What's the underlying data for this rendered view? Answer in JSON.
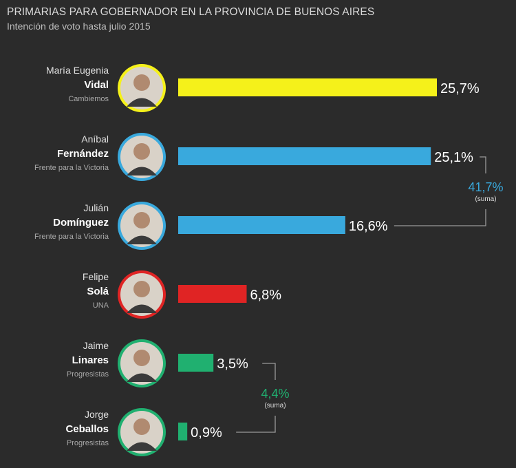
{
  "header": {
    "title": "PRIMARIAS PARA GOBERNADOR EN LA PROVINCIA DE BUENOS AIRES",
    "subtitle": "Intención de voto hasta julio 2015"
  },
  "chart_data": {
    "type": "bar",
    "orientation": "horizontal",
    "title": "PRIMARIAS PARA GOBERNADOR EN LA PROVINCIA DE BUENOS AIRES",
    "subtitle": "Intención de voto hasta julio 2015",
    "xlabel": "",
    "ylabel": "",
    "grid": false,
    "legend": "none",
    "xlim": [
      0,
      25.7
    ],
    "categories": [
      "Vidal",
      "Fernández",
      "Domínguez",
      "Solá",
      "Linares",
      "Ceballos"
    ],
    "candidates": [
      {
        "first": "María Eugenia",
        "last": "Vidal",
        "party": "Cambiemos",
        "value": 25.7,
        "label": "25,7%",
        "color": "#f5f11a"
      },
      {
        "first": "Aníbal",
        "last": "Fernández",
        "party": "Frente para la Victoria",
        "value": 25.1,
        "label": "25,1%",
        "color": "#39a9dd"
      },
      {
        "first": "Julián",
        "last": "Domínguez",
        "party": "Frente para la Victoria",
        "value": 16.6,
        "label": "16,6%",
        "color": "#39a9dd"
      },
      {
        "first": "Felipe",
        "last": "Solá",
        "party": "UNA",
        "value": 6.8,
        "label": "6,8%",
        "color": "#e02424"
      },
      {
        "first": "Jaime",
        "last": "Linares",
        "party": "Progresistas",
        "value": 3.5,
        "label": "3,5%",
        "color": "#20b070"
      },
      {
        "first": "Jorge",
        "last": "Ceballos",
        "party": "Progresistas",
        "value": 0.9,
        "label": "0,9%",
        "color": "#20b070"
      }
    ],
    "sums": [
      {
        "rows": [
          1,
          2
        ],
        "value": 41.7,
        "label": "41,7%",
        "note": "(suma)",
        "color": "#39a9dd"
      },
      {
        "rows": [
          4,
          5
        ],
        "value": 4.4,
        "label": "4,4%",
        "note": "(suma)",
        "color": "#20b070"
      }
    ]
  }
}
